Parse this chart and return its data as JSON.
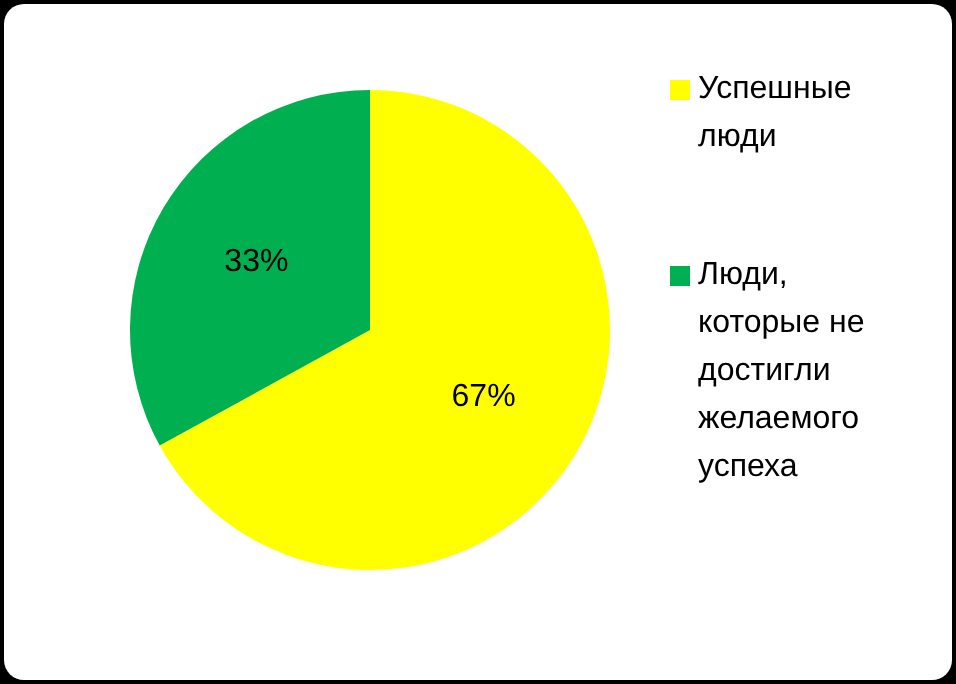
{
  "chart_data": {
    "type": "pie",
    "categories": [
      "Успешные люди",
      "Люди, которые не достигли желаемого успеха"
    ],
    "values": [
      67,
      33
    ],
    "colors": [
      "#ffff00",
      "#00b050"
    ],
    "data_labels": true,
    "value_labels": [
      "67%",
      "33%"
    ],
    "legend": "right"
  }
}
